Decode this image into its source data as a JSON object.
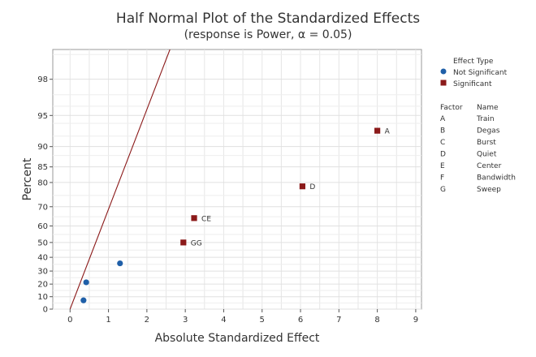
{
  "chart_data": {
    "type": "scatter",
    "title": "Half Normal Plot of the Standardized Effects",
    "subtitle": "(response is Power, α = 0.05)",
    "xlabel": "Absolute Standardized Effect",
    "ylabel": "Percent",
    "xlim": [
      -0.45,
      9.15
    ],
    "x_ticks": [
      0,
      1,
      2,
      3,
      4,
      5,
      6,
      7,
      8,
      9
    ],
    "y_ticks": [
      0,
      10,
      20,
      30,
      40,
      50,
      60,
      70,
      80,
      85,
      90,
      95,
      98
    ],
    "y_scale": "half-normal probability",
    "grid": true,
    "reference_line": {
      "x1": 0,
      "x2": 2.6,
      "color": "#8b1a1a"
    },
    "series": [
      {
        "name": "Not Significant",
        "marker": "circle",
        "color": "#1f5fa8",
        "points": [
          {
            "x": 0.35,
            "y": 7.1,
            "label": ""
          },
          {
            "x": 0.42,
            "y": 21.4,
            "label": ""
          },
          {
            "x": 1.3,
            "y": 35.7,
            "label": ""
          }
        ]
      },
      {
        "name": "Significant",
        "marker": "square",
        "color": "#8b1a1a",
        "points": [
          {
            "x": 2.95,
            "y": 50.0,
            "label": "GG"
          },
          {
            "x": 3.23,
            "y": 64.3,
            "label": "CE"
          },
          {
            "x": 6.05,
            "y": 78.6,
            "label": "D"
          },
          {
            "x": 8.0,
            "y": 92.9,
            "label": "A"
          }
        ]
      }
    ],
    "legend": {
      "position": "right",
      "title": "Effect Type",
      "factor_header": "Factor",
      "name_header": "Name",
      "factors": [
        {
          "factor": "A",
          "name": "Train"
        },
        {
          "factor": "B",
          "name": "Degas"
        },
        {
          "factor": "C",
          "name": "Burst"
        },
        {
          "factor": "D",
          "name": "Quiet"
        },
        {
          "factor": "E",
          "name": "Center"
        },
        {
          "factor": "F",
          "name": "Bandwidth"
        },
        {
          "factor": "G",
          "name": "Sweep"
        }
      ]
    }
  }
}
